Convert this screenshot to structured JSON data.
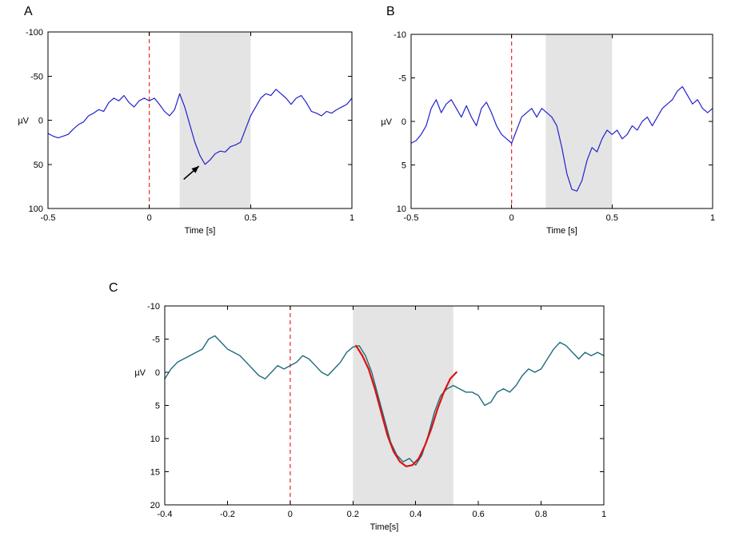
{
  "figure": {
    "background": "#ffffff"
  },
  "chart_data": [
    {
      "panel_label": "A",
      "type": "line",
      "title": "",
      "xlabel": "Time [s]",
      "ylabel": "µV",
      "xlim": [
        -0.5,
        1
      ],
      "ylim": [
        -100,
        100
      ],
      "y_axis_reversed": true,
      "grid": false,
      "xticks": {
        "v": [
          -0.5,
          0,
          0.5,
          1
        ],
        "t": [
          "-0.5",
          "0",
          "0.5",
          "1"
        ]
      },
      "yticks": {
        "v": [
          -100,
          -50,
          0,
          50,
          100
        ],
        "t": [
          "-100",
          "-50",
          "0",
          "50",
          "100"
        ]
      },
      "shaded_region": {
        "x": [
          0.15,
          0.5
        ],
        "color": "#e4e4e4"
      },
      "event_line": {
        "x": 0,
        "color": "#ee2222",
        "style": "dashed"
      },
      "series": [
        {
          "name": "eeg-trace",
          "color": "#2222cc",
          "width": 1.2,
          "x_start": -0.5,
          "x_step": 0.025,
          "y": [
            15,
            18,
            20,
            18,
            16,
            10,
            5,
            2,
            -5,
            -8,
            -12,
            -10,
            -20,
            -25,
            -22,
            -28,
            -20,
            -15,
            -22,
            -25,
            -22,
            -25,
            -18,
            -10,
            -5,
            -12,
            -30,
            -15,
            5,
            25,
            40,
            50,
            45,
            38,
            35,
            36,
            30,
            28,
            25,
            10,
            -5,
            -15,
            -25,
            -30,
            -28,
            -35,
            -30,
            -25,
            -18,
            -25,
            -28,
            -20,
            -10,
            -8,
            -5,
            -10,
            -8,
            -12,
            -15,
            -18,
            -25
          ]
        }
      ],
      "annotations": [
        {
          "type": "arrow",
          "from": [
            0.17,
            67
          ],
          "to": [
            0.245,
            52
          ],
          "color": "#000000"
        }
      ],
      "layout": {
        "margins": {
          "l": 48,
          "r": 12,
          "t": 12,
          "b": 45
        },
        "legend": "none"
      }
    },
    {
      "panel_label": "B",
      "type": "line",
      "title": "",
      "xlabel": "Time [s]",
      "ylabel": "µV",
      "xlim": [
        -0.5,
        1
      ],
      "ylim": [
        -10,
        10
      ],
      "y_axis_reversed": true,
      "grid": false,
      "xticks": {
        "v": [
          -0.5,
          0,
          0.5,
          1
        ],
        "t": [
          "-0.5",
          "0",
          "0.5",
          "1"
        ]
      },
      "yticks": {
        "v": [
          -10,
          -5,
          0,
          5,
          10
        ],
        "t": [
          "-10",
          "-5",
          "0",
          "5",
          "10"
        ]
      },
      "shaded_region": {
        "x": [
          0.17,
          0.5
        ],
        "color": "#e4e4e4"
      },
      "event_line": {
        "x": 0,
        "color": "#ee2222",
        "style": "dashed"
      },
      "series": [
        {
          "name": "eeg-trace",
          "color": "#2222cc",
          "width": 1.2,
          "x_start": -0.5,
          "x_step": 0.025,
          "y": [
            2.5,
            2.2,
            1.5,
            0.5,
            -1.5,
            -2.5,
            -1.0,
            -2.0,
            -2.5,
            -1.5,
            -0.5,
            -1.8,
            -0.5,
            0.5,
            -1.5,
            -2.2,
            -1.0,
            0.5,
            1.5,
            2.0,
            2.5,
            1.0,
            -0.5,
            -1.0,
            -1.5,
            -0.5,
            -1.5,
            -1.0,
            -0.5,
            0.5,
            3.0,
            6.0,
            7.8,
            8.0,
            6.8,
            4.5,
            3.0,
            3.5,
            2.0,
            1.0,
            1.5,
            1.0,
            2.0,
            1.5,
            0.5,
            1.0,
            0.0,
            -0.5,
            0.5,
            -0.5,
            -1.5,
            -2.0,
            -2.5,
            -3.5,
            -4.0,
            -3.0,
            -2.0,
            -2.5,
            -1.5,
            -1.0,
            -1.5
          ]
        }
      ],
      "annotations": [],
      "layout": {
        "margins": {
          "l": 44,
          "r": 14,
          "t": 15,
          "b": 45
        },
        "legend": "none"
      }
    },
    {
      "panel_label": "C",
      "type": "line",
      "title": "",
      "xlabel": "Time[s]",
      "ylabel": "µV",
      "xlim": [
        -0.4,
        1
      ],
      "ylim": [
        -10,
        20
      ],
      "y_axis_reversed": true,
      "grid": false,
      "xticks": {
        "v": [
          -0.4,
          -0.2,
          0,
          0.2,
          0.4,
          0.6,
          0.8,
          1
        ],
        "t": [
          "-0.4",
          "-0.2",
          "0",
          "0.2",
          "0.4",
          "0.6",
          "0.8",
          "1"
        ]
      },
      "yticks": {
        "v": [
          -10,
          -5,
          0,
          5,
          10,
          15,
          20
        ],
        "t": [
          "-10",
          "-5",
          "0",
          "5",
          "10",
          "15",
          "20"
        ]
      },
      "shaded_region": {
        "x": [
          0.2,
          0.52
        ],
        "color": "#e4e4e4"
      },
      "event_line": {
        "x": 0,
        "color": "#ee2222",
        "style": "dashed"
      },
      "series": [
        {
          "name": "eeg-trace",
          "color": "#1f6b7c",
          "width": 1.4,
          "x_start": -0.4,
          "x_step": 0.02,
          "y": [
            1,
            -0.5,
            -1.5,
            -2,
            -2.5,
            -3,
            -3.5,
            -5,
            -5.5,
            -4.5,
            -3.5,
            -3,
            -2.5,
            -1.5,
            -0.5,
            0.5,
            1,
            0,
            -1,
            -0.5,
            -1,
            -1.5,
            -2.5,
            -2,
            -1,
            0,
            0.5,
            -0.5,
            -1.5,
            -3,
            -3.8,
            -4,
            -2.5,
            0,
            3.5,
            7,
            10.5,
            12.5,
            13.5,
            13,
            14,
            12.5,
            9.5,
            6,
            3.5,
            2.5,
            2,
            2.5,
            3,
            3,
            3.5,
            5,
            4.5,
            3,
            2.5,
            3,
            2,
            0.5,
            -0.5,
            0,
            -0.5,
            -2,
            -3.5,
            -4.5,
            -4,
            -3,
            -2,
            -3,
            -2.5,
            -3,
            -2.5
          ]
        },
        {
          "name": "gaussian-fit",
          "color": "#dd1111",
          "width": 2.2,
          "x_start": 0.21,
          "x_step": 0.02,
          "y": [
            -4,
            -2.5,
            -0.5,
            2.5,
            6,
            9.5,
            12,
            13.5,
            14.2,
            14,
            13,
            11,
            8.5,
            5.5,
            3,
            1,
            0
          ]
        }
      ],
      "annotations": [],
      "layout": {
        "margins": {
          "l": 46,
          "r": 25,
          "t": 15,
          "b": 48
        },
        "legend": "none"
      }
    }
  ]
}
